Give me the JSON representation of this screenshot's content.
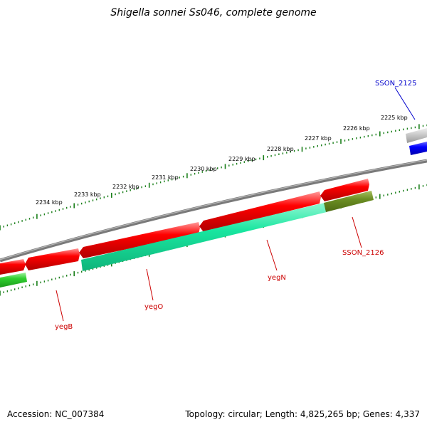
{
  "title": "Shigella sonnei Ss046, complete genome",
  "footer": {
    "accession": "Accession: NC_007384",
    "summary": "Topology: circular; Length: 4,825,265 bp; Genes: 4,337"
  },
  "scale_labels": [
    "2225 kbp",
    "2226 kbp",
    "2227 kbp",
    "2228 kbp",
    "2229 kbp",
    "2230 kbp",
    "2231 kbp",
    "2232 kbp",
    "2233 kbp",
    "2234 kbp"
  ],
  "gene_labels": [
    {
      "name": "SSON_2125",
      "color": "#0000cc"
    },
    {
      "name": "SSON_2126",
      "color": "#cc0000"
    },
    {
      "name": "yegN",
      "color": "#cc0000"
    },
    {
      "name": "yegO",
      "color": "#cc0000"
    },
    {
      "name": "yegB",
      "color": "#cc0000"
    }
  ],
  "colors": {
    "backbone": "#808080",
    "forward_cds": "#ff0000",
    "cog_teal": "#1ee8a0",
    "cog_olive": "#6b8e23",
    "cog_green": "#2fcf2f",
    "blue_feature": "#0000ff",
    "grey_feature": "#bdbdbd",
    "tick": "#1a7f1a"
  }
}
